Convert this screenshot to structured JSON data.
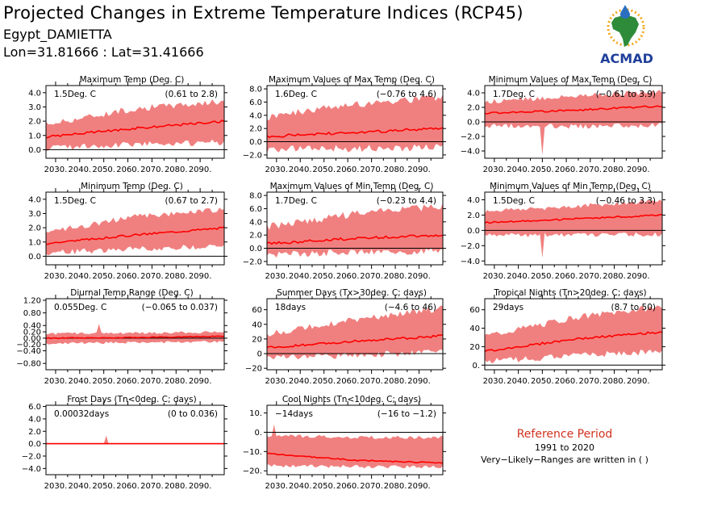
{
  "header": {
    "title": "Projected Changes in Extreme Temperature Indices (RCP45)",
    "station": "Egypt_DAMIETTA",
    "coords": "Lon=31.81666 : Lat=31.41666"
  },
  "logo": {
    "text": "ACMAD",
    "icon": "africa-map-drop-logo",
    "color": "#1f3f9a",
    "map_color": "#2e8b3a",
    "sun_color": "#f2a81d"
  },
  "colors": {
    "band": "#f08080",
    "median": "#ff0000",
    "baseline": "#000000"
  },
  "reference": {
    "title": "Reference Period",
    "years": "1991 to 2020",
    "note": "Very−Likely−Ranges are written in ( )"
  },
  "chart_data": [
    {
      "type": "area",
      "title": "Maximum Temp (Deg. C)",
      "value_label": "1.5Deg. C",
      "range_label": "(0.61 to 2.8)",
      "x_start": 2026,
      "x_end": 2100,
      "xticks": [
        "2030.",
        "2040.",
        "2050.",
        "2060.",
        "2070.",
        "2080.",
        "2090."
      ],
      "ylim": [
        -0.6,
        4.5
      ],
      "yticks": [
        0,
        1,
        2,
        3,
        4
      ],
      "ytick_labels": [
        "0.0",
        "1.0",
        "2.0",
        "3.0",
        "4.0"
      ],
      "median": [
        0.9,
        1.5,
        2.0
      ],
      "lower": [
        0.2,
        0.5,
        0.6
      ],
      "upper": [
        1.7,
        2.8,
        3.3
      ],
      "noise": 0.45,
      "spike": null
    },
    {
      "type": "area",
      "title": "Maximum Values of Max Temp (Deg. C)",
      "value_label": "1.6Deg. C",
      "range_label": "(−0.76 to 4.6)",
      "x_start": 2026,
      "x_end": 2100,
      "xticks": [
        "2030.",
        "2040.",
        "2050.",
        "2060.",
        "2070.",
        "2080.",
        "2090."
      ],
      "ylim": [
        -2.5,
        8.5
      ],
      "yticks": [
        -2,
        0,
        2,
        4,
        6,
        8
      ],
      "ytick_labels": [
        "−2.0",
        "0.0",
        "2.0",
        "4.0",
        "6.0",
        "8.0"
      ],
      "median": [
        0.8,
        1.4,
        2.0
      ],
      "lower": [
        -1.0,
        -0.8,
        -0.6
      ],
      "upper": [
        3.5,
        5.5,
        6.5
      ],
      "noise": 1.2,
      "spike": null
    },
    {
      "type": "area",
      "title": "Minimum Values of Max Temp (Deg. C)",
      "value_label": "1.7Deg. C",
      "range_label": "(−0.61 to 3.9)",
      "x_start": 2026,
      "x_end": 2100,
      "xticks": [
        "2030.",
        "2040.",
        "2050.",
        "2060.",
        "2070.",
        "2080.",
        "2090."
      ],
      "ylim": [
        -5,
        5
      ],
      "yticks": [
        -4,
        -2,
        0,
        2,
        4
      ],
      "ytick_labels": [
        "−4.0",
        "−2.0",
        "0.0",
        "2.0",
        "4.0"
      ],
      "median": [
        1.2,
        1.6,
        2.2
      ],
      "lower": [
        -0.4,
        -0.5,
        -0.3
      ],
      "upper": [
        2.6,
        3.4,
        4.0
      ],
      "noise": 0.7,
      "spike": [
        2050,
        -4.6
      ]
    },
    {
      "type": "area",
      "title": "Minimum Temp (Deg. C)",
      "value_label": "1.5Deg. C",
      "range_label": "(0.67 to 2.7)",
      "x_start": 2026,
      "x_end": 2100,
      "xticks": [
        "2030.",
        "2040.",
        "2050.",
        "2060.",
        "2070.",
        "2080.",
        "2090."
      ],
      "ylim": [
        -0.6,
        4.5
      ],
      "yticks": [
        0,
        1,
        2,
        3,
        4
      ],
      "ytick_labels": [
        "0.0",
        "1.0",
        "2.0",
        "3.0",
        "4.0"
      ],
      "median": [
        0.9,
        1.5,
        2.0
      ],
      "lower": [
        0.3,
        0.6,
        0.8
      ],
      "upper": [
        1.6,
        2.7,
        3.2
      ],
      "noise": 0.4,
      "spike": null
    },
    {
      "type": "area",
      "title": "Maximum Values of Min Temp (Deg. C)",
      "value_label": "1.7Deg. C",
      "range_label": "(−0.23 to 4.4)",
      "x_start": 2026,
      "x_end": 2100,
      "xticks": [
        "2030.",
        "2040.",
        "2050.",
        "2060.",
        "2070.",
        "2080.",
        "2090."
      ],
      "ylim": [
        -2.5,
        8.5
      ],
      "yticks": [
        -2,
        0,
        2,
        4,
        6,
        8
      ],
      "ytick_labels": [
        "−2.0",
        "0.0",
        "2.0",
        "4.0",
        "6.0",
        "8.0"
      ],
      "median": [
        0.7,
        1.5,
        2.0
      ],
      "lower": [
        -0.8,
        -0.4,
        -0.2
      ],
      "upper": [
        3.0,
        5.0,
        6.2
      ],
      "noise": 1.1,
      "spike": null
    },
    {
      "type": "area",
      "title": "Minimum Values of Min Temp (Deg. C)",
      "value_label": "1.5Deg. C",
      "range_label": "(−0.46 to 3.3)",
      "x_start": 2026,
      "x_end": 2100,
      "xticks": [
        "2030.",
        "2040.",
        "2050.",
        "2060.",
        "2070.",
        "2080.",
        "2090."
      ],
      "ylim": [
        -4.5,
        5
      ],
      "yticks": [
        -4,
        -2,
        0,
        2,
        4
      ],
      "ytick_labels": [
        "−4.0",
        "−2.0",
        "0.0",
        "2.0",
        "4.0"
      ],
      "median": [
        1.0,
        1.5,
        2.0
      ],
      "lower": [
        -0.5,
        -0.5,
        -0.4
      ],
      "upper": [
        2.4,
        3.0,
        3.8
      ],
      "noise": 0.6,
      "spike": [
        2050,
        -3.6
      ]
    },
    {
      "type": "area",
      "title": "Diurnal Temp Range (Deg. C)",
      "value_label": "0.055Deg. C",
      "range_label": "(−0.065 to 0.037)",
      "x_start": 2026,
      "x_end": 2100,
      "xticks": [
        "2030.",
        "2040.",
        "2050.",
        "2060.",
        "2070.",
        "2080.",
        "2090."
      ],
      "ylim": [
        -1.0,
        1.25
      ],
      "yticks": [
        -0.8,
        -0.4,
        -0.2,
        0,
        0.2,
        0.4,
        0.8,
        1.2
      ],
      "ytick_labels": [
        "−0.80",
        "−0.40",
        "−0.20",
        "0.00",
        "0.20",
        "0.40",
        "0.80",
        "1.20"
      ],
      "median": [
        0.0,
        0.02,
        0.06
      ],
      "lower": [
        -0.15,
        -0.12,
        -0.1
      ],
      "upper": [
        0.12,
        0.15,
        0.18
      ],
      "noise": 0.08,
      "spike": [
        2048,
        0.45
      ]
    },
    {
      "type": "area",
      "title": "Summer Days (Tx>30deg. C; days)",
      "value_label": "18days",
      "range_label": "(−4.6 to 46)",
      "x_start": 2026,
      "x_end": 2100,
      "xticks": [
        "2030.",
        "2040.",
        "2050.",
        "2060.",
        "2070.",
        "2080.",
        "2090."
      ],
      "ylim": [
        -22,
        75
      ],
      "yticks": [
        -20,
        0,
        20,
        40,
        60
      ],
      "ytick_labels": [
        "−20",
        "0",
        "20",
        "40",
        "60"
      ],
      "median": [
        8,
        17,
        24
      ],
      "lower": [
        -4,
        0,
        4
      ],
      "upper": [
        25,
        45,
        60
      ],
      "noise": 9,
      "spike": null
    },
    {
      "type": "area",
      "title": "Tropical Nights (Tn>20deg. C; days)",
      "value_label": "29days",
      "range_label": "(8.7 to 50)",
      "x_start": 2026,
      "x_end": 2100,
      "xticks": [
        "2030.",
        "2040.",
        "2050.",
        "2060.",
        "2070.",
        "2080.",
        "2090."
      ],
      "ylim": [
        -5,
        72
      ],
      "yticks": [
        0,
        20,
        40,
        60
      ],
      "ytick_labels": [
        "0.",
        "20",
        "40",
        "60"
      ],
      "median": [
        15,
        28,
        36
      ],
      "lower": [
        5,
        12,
        16
      ],
      "upper": [
        30,
        50,
        62
      ],
      "noise": 7,
      "spike": null
    },
    {
      "type": "area",
      "title": "Frost Days (Tn<0deg. C; days)",
      "value_label": "0.00032days",
      "range_label": "(0 to 0.036)",
      "x_start": 2026,
      "x_end": 2100,
      "xticks": [
        "2030.",
        "2040.",
        "2050.",
        "2060.",
        "2070.",
        "2080.",
        "2090."
      ],
      "ylim": [
        -5,
        6.2
      ],
      "yticks": [
        -4,
        -2,
        0,
        2,
        4,
        6
      ],
      "ytick_labels": [
        "−4.0",
        "−2.0",
        "0.0",
        "2.0",
        "4.0",
        "6.0"
      ],
      "median": [
        0,
        0,
        0
      ],
      "lower": [
        0,
        0,
        0
      ],
      "upper": [
        0,
        0,
        0
      ],
      "noise": 0,
      "spike": [
        2051,
        1.3
      ]
    },
    {
      "type": "area",
      "title": "Cool Nights (Tn<10deg. C; days)",
      "value_label": "−14days",
      "range_label": "(−16 to −1.2)",
      "x_start": 2026,
      "x_end": 2100,
      "xticks": [
        "2030.",
        "2040.",
        "2050.",
        "2060.",
        "2070.",
        "2080.",
        "2090."
      ],
      "ylim": [
        -22,
        14
      ],
      "yticks": [
        -20,
        -10,
        0,
        10
      ],
      "ytick_labels": [
        "−20.",
        "−10.",
        "0.",
        "10."
      ],
      "median": [
        -11,
        -14.5,
        -16
      ],
      "lower": [
        -17,
        -17.5,
        -17.5
      ],
      "upper": [
        -2,
        -3,
        -3
      ],
      "noise": 1.8,
      "spike": [
        2029,
        4
      ]
    }
  ]
}
